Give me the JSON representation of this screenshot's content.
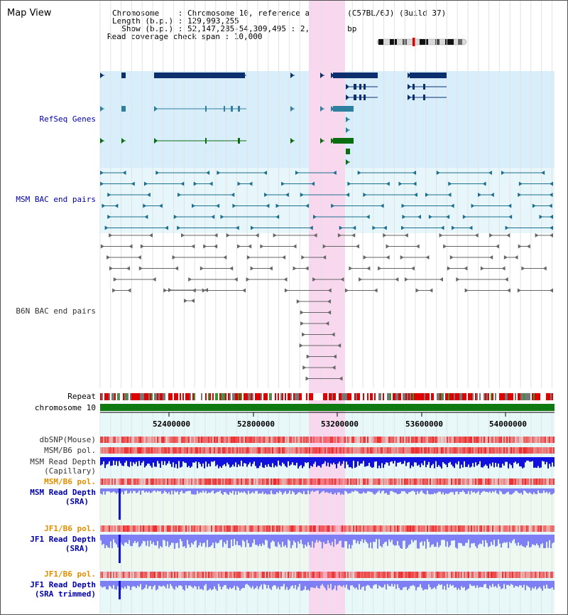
{
  "panel_title": "Map View",
  "info": {
    "chromosome": "Chromosome    : Chromosome 10, reference assembly (C57BL/6J) (Build 37)",
    "length": "Length (b.p.) : 129,993,255",
    "show": "  Show (b.p.) : 52,147,285-54,309,495 : 2,162,211 bp",
    "coverage": "Read coverage check span : 10,000"
  },
  "tracks": {
    "refseq": "RefSeq Genes",
    "msm_bac": "MSM BAC end pairs",
    "b6n_bac": "B6N BAC end pairs",
    "repeat": "Repeat",
    "chromosome": "chromosome 10",
    "dbsnp": "dbSNP(Mouse)",
    "msm_b6_pol_1": "MSM/B6 pol.",
    "msm_depth_cap_1": "MSM Read Depth",
    "msm_depth_cap_2": "(Capillary)",
    "msm_b6_pol_2": "MSM/B6 pol.",
    "msm_depth_sra_1": "MSM Read Depth",
    "msm_depth_sra_2": "(SRA)",
    "jf1_b6_pol_1": "JF1/B6 pol.",
    "jf1_depth_sra_1": "JF1 Read Depth",
    "jf1_depth_sra_2": "(SRA)",
    "jf1_b6_pol_2": "JF1/B6 pol.",
    "jf1_depth_trim_1": "JF1 Read Depth",
    "jf1_depth_trim_2": "(SRA trimmed)"
  },
  "axis": {
    "ticks": [
      "52400000",
      "52800000",
      "53200000",
      "53600000",
      "54000000"
    ]
  },
  "colors": {
    "refseq_bg": "#d8eefa",
    "msm_bg": "#e6f6fa",
    "highlight": "#f9d8ef",
    "gene_dark": "#0c2f6e",
    "gene_teal": "#2f7f9f",
    "gene_green": "#0a6e10",
    "msm_feature": "#1a6e8e",
    "b6n_feature": "#666666",
    "chrom_bar": "#0f7a12",
    "depth_dark": "#1111dd",
    "depth_light": "#7f7ff5",
    "label_blue": "#0000aa",
    "label_orange": "#e08e00",
    "label_gray": "#333333"
  }
}
